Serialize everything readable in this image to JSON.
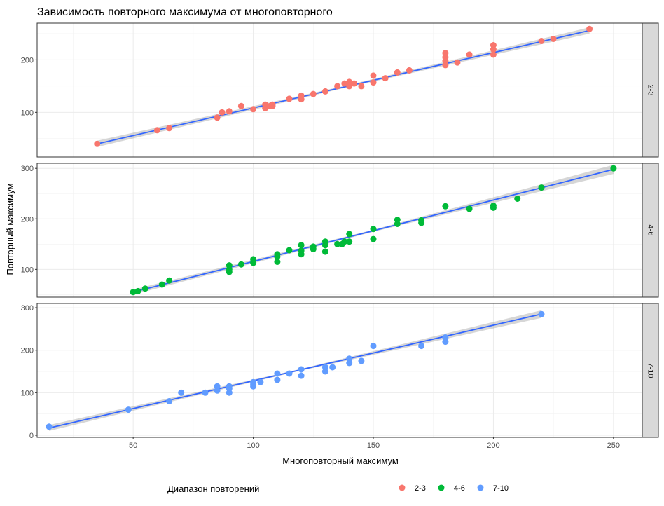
{
  "chart_data": {
    "type": "scatter",
    "title": "Зависимость повторного максимума от многоповторного",
    "xlabel": "Многоповторный максимум",
    "ylabel": "Повторный максимум",
    "xlim": [
      10,
      262
    ],
    "x_ticks": [
      50,
      100,
      150,
      200,
      250
    ],
    "trend": "linear fit with confidence band (per panel)",
    "grid": true,
    "legend": {
      "title": "Диапазон повторений",
      "position": "bottom",
      "entries": [
        {
          "label": "2-3",
          "color": "#F8766D"
        },
        {
          "label": "4-6",
          "color": "#00BA38"
        },
        {
          "label": "7-10",
          "color": "#619CFF"
        }
      ]
    },
    "panels": [
      {
        "strip": "2-3",
        "color": "#F8766D",
        "ylim": [
          15,
          270
        ],
        "y_ticks": [
          100,
          200
        ],
        "fit": {
          "x": [
            35,
            240
          ],
          "y": [
            40,
            256
          ]
        },
        "band_halfwidth": [
          6,
          2,
          6
        ],
        "points": [
          [
            35,
            40
          ],
          [
            60,
            66
          ],
          [
            65,
            70
          ],
          [
            85,
            90
          ],
          [
            87,
            100
          ],
          [
            90,
            102
          ],
          [
            95,
            112
          ],
          [
            100,
            106
          ],
          [
            105,
            108
          ],
          [
            105,
            115
          ],
          [
            107,
            112
          ],
          [
            108,
            112
          ],
          [
            108,
            115
          ],
          [
            115,
            126
          ],
          [
            120,
            125
          ],
          [
            120,
            132
          ],
          [
            125,
            135
          ],
          [
            130,
            140
          ],
          [
            135,
            150
          ],
          [
            138,
            155
          ],
          [
            140,
            150
          ],
          [
            140,
            158
          ],
          [
            142,
            155
          ],
          [
            145,
            150
          ],
          [
            150,
            157
          ],
          [
            150,
            170
          ],
          [
            155,
            165
          ],
          [
            160,
            176
          ],
          [
            165,
            180
          ],
          [
            180,
            190
          ],
          [
            180,
            198
          ],
          [
            180,
            205
          ],
          [
            180,
            213
          ],
          [
            185,
            195
          ],
          [
            190,
            210
          ],
          [
            200,
            210
          ],
          [
            200,
            220
          ],
          [
            200,
            228
          ],
          [
            220,
            236
          ],
          [
            225,
            240
          ],
          [
            240,
            259
          ]
        ]
      },
      {
        "strip": "4-6",
        "color": "#00BA38",
        "ylim": [
          45,
          310
        ],
        "y_ticks": [
          100,
          200,
          300
        ],
        "fit": {
          "x": [
            50,
            250
          ],
          "y": [
            55,
            298
          ]
        },
        "band_halfwidth": [
          5,
          2,
          9
        ],
        "points": [
          [
            50,
            55
          ],
          [
            52,
            57
          ],
          [
            55,
            62
          ],
          [
            62,
            70
          ],
          [
            65,
            78
          ],
          [
            90,
            95
          ],
          [
            90,
            100
          ],
          [
            90,
            108
          ],
          [
            95,
            110
          ],
          [
            100,
            113
          ],
          [
            100,
            120
          ],
          [
            110,
            115
          ],
          [
            110,
            125
          ],
          [
            110,
            130
          ],
          [
            115,
            138
          ],
          [
            120,
            130
          ],
          [
            120,
            137
          ],
          [
            120,
            148
          ],
          [
            125,
            140
          ],
          [
            125,
            145
          ],
          [
            130,
            135
          ],
          [
            130,
            148
          ],
          [
            130,
            155
          ],
          [
            135,
            150
          ],
          [
            137,
            150
          ],
          [
            138,
            155
          ],
          [
            140,
            155
          ],
          [
            140,
            170
          ],
          [
            150,
            160
          ],
          [
            150,
            180
          ],
          [
            160,
            190
          ],
          [
            160,
            198
          ],
          [
            170,
            192
          ],
          [
            170,
            197
          ],
          [
            180,
            225
          ],
          [
            190,
            220
          ],
          [
            200,
            222
          ],
          [
            200,
            226
          ],
          [
            210,
            240
          ],
          [
            220,
            262
          ],
          [
            250,
            300
          ]
        ]
      },
      {
        "strip": "7-10",
        "color": "#619CFF",
        "ylim": [
          -5,
          310
        ],
        "y_ticks": [
          0,
          100,
          200,
          300
        ],
        "fit": {
          "x": [
            15,
            220
          ],
          "y": [
            17,
            285
          ]
        },
        "band_halfwidth": [
          7,
          2,
          9
        ],
        "points": [
          [
            15,
            20
          ],
          [
            48,
            60
          ],
          [
            65,
            80
          ],
          [
            70,
            100
          ],
          [
            80,
            100
          ],
          [
            85,
            105
          ],
          [
            85,
            115
          ],
          [
            90,
            100
          ],
          [
            90,
            110
          ],
          [
            90,
            115
          ],
          [
            100,
            115
          ],
          [
            100,
            120
          ],
          [
            100,
            125
          ],
          [
            103,
            125
          ],
          [
            110,
            130
          ],
          [
            110,
            145
          ],
          [
            115,
            145
          ],
          [
            120,
            140
          ],
          [
            120,
            155
          ],
          [
            130,
            150
          ],
          [
            130,
            160
          ],
          [
            133,
            160
          ],
          [
            140,
            170
          ],
          [
            140,
            180
          ],
          [
            145,
            175
          ],
          [
            150,
            210
          ],
          [
            170,
            210
          ],
          [
            180,
            220
          ],
          [
            180,
            230
          ],
          [
            220,
            285
          ]
        ]
      }
    ]
  }
}
